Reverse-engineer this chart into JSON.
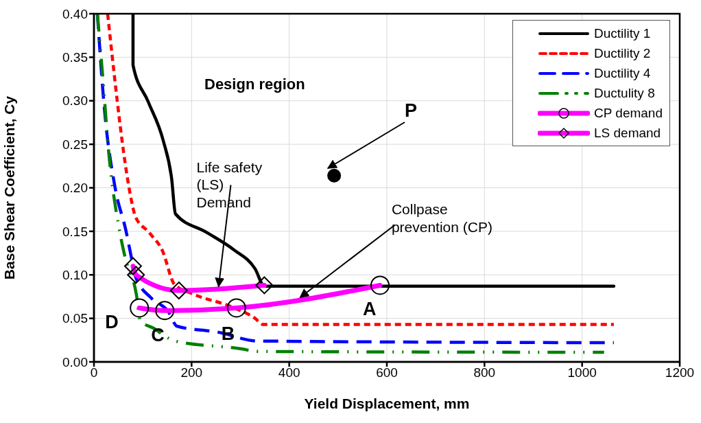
{
  "chart_data": {
    "type": "line",
    "xlabel": "Yield Displacement, mm",
    "ylabel": "Base Shear Coefficient, Cy",
    "xlim": [
      0,
      1200
    ],
    "xticks": [
      0,
      200,
      400,
      600,
      800,
      1000,
      1200
    ],
    "ylim": [
      0,
      0.4
    ],
    "yticks": [
      {
        "value": 0,
        "label": "0.00"
      },
      0.05,
      {
        "value": 0.1,
        "label": "0.10"
      },
      0.15,
      {
        "value": 0.2,
        "label": "0.20"
      },
      0.25,
      {
        "value": 0.3,
        "label": "0.30"
      },
      0.35,
      {
        "value": 0.4,
        "label": "0.40"
      }
    ],
    "grid": true,
    "legend": "top right",
    "series": [
      {
        "name": "Ductility 1",
        "color": "#000000",
        "line_style": "solid",
        "marker": "none",
        "x": [
          80,
          80,
          111,
          142,
          159,
          167,
          230,
          286,
          330,
          349,
          1065
        ],
        "values": [
          0.4,
          0.341,
          0.299,
          0.254,
          0.211,
          0.17,
          0.149,
          0.129,
          0.107,
          0.087,
          0.087
        ]
      },
      {
        "name": "Ductility 2",
        "color": "#ff0000",
        "line_style": "dashed",
        "marker": "none",
        "x": [
          28,
          80,
          84,
          114,
          140,
          165,
          203,
          283,
          330,
          346,
          1065
        ],
        "values": [
          0.4,
          0.177,
          0.168,
          0.148,
          0.128,
          0.089,
          0.078,
          0.063,
          0.05,
          0.043,
          0.043
        ]
      },
      {
        "name": "Ductility 4",
        "color": "#0000ff",
        "line_style": "dashed",
        "marker": "none",
        "x": [
          7,
          21,
          44,
          65,
          77,
          85,
          118,
          152,
          170,
          255,
          335,
          1065
        ],
        "values": [
          0.4,
          0.293,
          0.198,
          0.152,
          0.119,
          0.098,
          0.073,
          0.058,
          0.041,
          0.034,
          0.024,
          0.022
        ]
      },
      {
        "name": "Ductulity 8",
        "color": "#008000",
        "line_style": "dashed",
        "marker": "none",
        "x": [
          7,
          17,
          31,
          51,
          63,
          87,
          95,
          121,
          166,
          302,
          335,
          1045
        ],
        "values": [
          0.4,
          0.334,
          0.236,
          0.155,
          0.122,
          0.077,
          0.047,
          0.039,
          0.024,
          0.015,
          0.012,
          0.011
        ]
      },
      {
        "name": "CP demand",
        "color": "#ff00ff",
        "line_style": "solid",
        "marker": "circle",
        "x": [
          93,
          145,
          292,
          586
        ],
        "values": [
          0.062,
          0.059,
          0.062,
          0.088
        ]
      },
      {
        "name": "LS demand",
        "color": "#ff00ff",
        "line_style": "solid",
        "marker": "diamond",
        "x": [
          80,
          86,
          174,
          349
        ],
        "values": [
          0.11,
          0.1,
          0.082,
          0.088
        ]
      },
      {
        "type": "scatter",
        "color": "#000000",
        "marker": "circle",
        "x": [
          492
        ],
        "values": [
          0.214
        ]
      }
    ],
    "annotations": [
      "Design region",
      {
        "text": "Life safety\n(LS)\nDemand",
        "x": 255,
        "y": 0.085
      },
      {
        "text": "Collpase\nprevention (CP)",
        "x": 420,
        "y": 0.073
      },
      "P",
      {
        "text": "A",
        "x": 586,
        "y": 0.088
      },
      {
        "text": "B",
        "x": 292,
        "y": 0.062
      },
      {
        "text": "C",
        "x": 145,
        "y": 0.059
      },
      {
        "text": "D",
        "x": 93,
        "y": 0.062
      }
    ]
  }
}
